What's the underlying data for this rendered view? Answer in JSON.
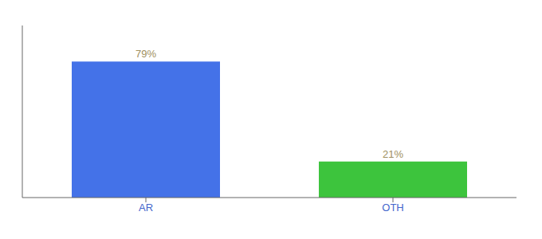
{
  "chart_data": {
    "type": "bar",
    "categories": [
      "AR",
      "OTH"
    ],
    "values": [
      79,
      21
    ],
    "colors": [
      "#4472e8",
      "#3dc43d"
    ],
    "value_labels": [
      "79%",
      "21%"
    ],
    "data_labels": true,
    "ylim": [
      0,
      100
    ],
    "tick_labels": "x",
    "grid": false
  }
}
